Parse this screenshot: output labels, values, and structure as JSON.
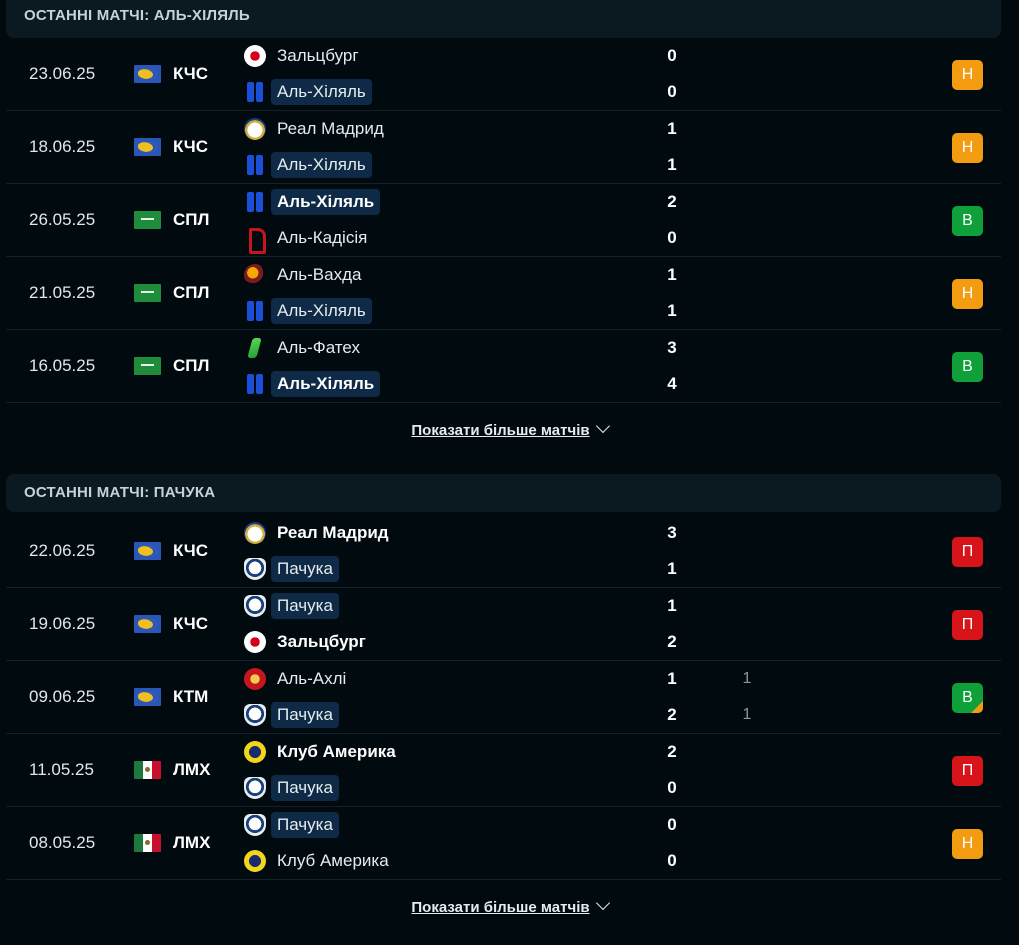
{
  "sections": [
    {
      "title": "ОСТАННІ МАТЧІ: АЛЬ-ХІЛЯЛЬ",
      "more_label": "Показати більше матчів",
      "matches": [
        {
          "date": "23.06.25",
          "flag": "world-flag-icon",
          "comp": "КЧС",
          "home": {
            "name": "Зальцбург",
            "logo": "salzburg-logo"
          },
          "away": {
            "name": "Аль-Хіляль",
            "logo": "al-hilal-logo"
          },
          "home_score": "0",
          "away_score": "0",
          "result": "Н"
        },
        {
          "date": "18.06.25",
          "flag": "world-flag-icon",
          "comp": "КЧС",
          "home": {
            "name": "Реал Мадрид",
            "logo": "real-madrid-logo"
          },
          "away": {
            "name": "Аль-Хіляль",
            "logo": "al-hilal-logo"
          },
          "home_score": "1",
          "away_score": "1",
          "result": "Н"
        },
        {
          "date": "26.05.25",
          "flag": "saudi-flag-icon",
          "comp": "СПЛ",
          "home": {
            "name": "Аль-Хіляль",
            "logo": "al-hilal-logo"
          },
          "away": {
            "name": "Аль-Кадісія",
            "logo": "al-qadsiah-logo"
          },
          "home_score": "2",
          "away_score": "0",
          "result": "В"
        },
        {
          "date": "21.05.25",
          "flag": "saudi-flag-icon",
          "comp": "СПЛ",
          "home": {
            "name": "Аль-Вахда",
            "logo": "al-wehda-logo"
          },
          "away": {
            "name": "Аль-Хіляль",
            "logo": "al-hilal-logo"
          },
          "home_score": "1",
          "away_score": "1",
          "result": "Н"
        },
        {
          "date": "16.05.25",
          "flag": "saudi-flag-icon",
          "comp": "СПЛ",
          "home": {
            "name": "Аль-Фатех",
            "logo": "al-fateh-logo"
          },
          "away": {
            "name": "Аль-Хіляль",
            "logo": "al-hilal-logo"
          },
          "home_score": "3",
          "away_score": "4",
          "result": "В"
        }
      ]
    },
    {
      "title": "ОСТАННІ МАТЧІ: ПАЧУКА",
      "more_label": "Показати більше матчів",
      "matches": [
        {
          "date": "22.06.25",
          "flag": "world-flag-icon",
          "comp": "КЧС",
          "home": {
            "name": "Реал Мадрид",
            "logo": "real-madrid-logo"
          },
          "away": {
            "name": "Пачука",
            "logo": "pachuca-logo"
          },
          "home_score": "3",
          "away_score": "1",
          "result": "П"
        },
        {
          "date": "19.06.25",
          "flag": "world-flag-icon",
          "comp": "КЧС",
          "home": {
            "name": "Пачука",
            "logo": "pachuca-logo"
          },
          "away": {
            "name": "Зальцбург",
            "logo": "salzburg-logo"
          },
          "home_score": "1",
          "away_score": "2",
          "result": "П"
        },
        {
          "date": "09.06.25",
          "flag": "world-flag-icon",
          "comp": "КТМ",
          "home": {
            "name": "Аль-Ахлі",
            "logo": "al-ahly-logo"
          },
          "away": {
            "name": "Пачука",
            "logo": "pachuca-logo"
          },
          "home_score": "1",
          "away_score": "2",
          "home_pen": "1",
          "away_pen": "1",
          "result": "В"
        },
        {
          "date": "11.05.25",
          "flag": "mexico-flag-icon",
          "comp": "ЛМХ",
          "home": {
            "name": "Клуб Америка",
            "logo": "club-america-logo"
          },
          "away": {
            "name": "Пачука",
            "logo": "pachuca-logo"
          },
          "home_score": "2",
          "away_score": "0",
          "result": "П"
        },
        {
          "date": "08.05.25",
          "flag": "mexico-flag-icon",
          "comp": "ЛМХ",
          "home": {
            "name": "Пачука",
            "logo": "pachuca-logo"
          },
          "away": {
            "name": "Клуб Америка",
            "logo": "club-america-logo"
          },
          "home_score": "0",
          "away_score": "0",
          "result": "Н"
        }
      ]
    }
  ],
  "colors": {
    "background": "#010a0f",
    "header": "#0b1a21",
    "highlight": "#0e2a46",
    "draw": "#f39c12",
    "win": "#0fa03a",
    "loss": "#d7141a"
  }
}
